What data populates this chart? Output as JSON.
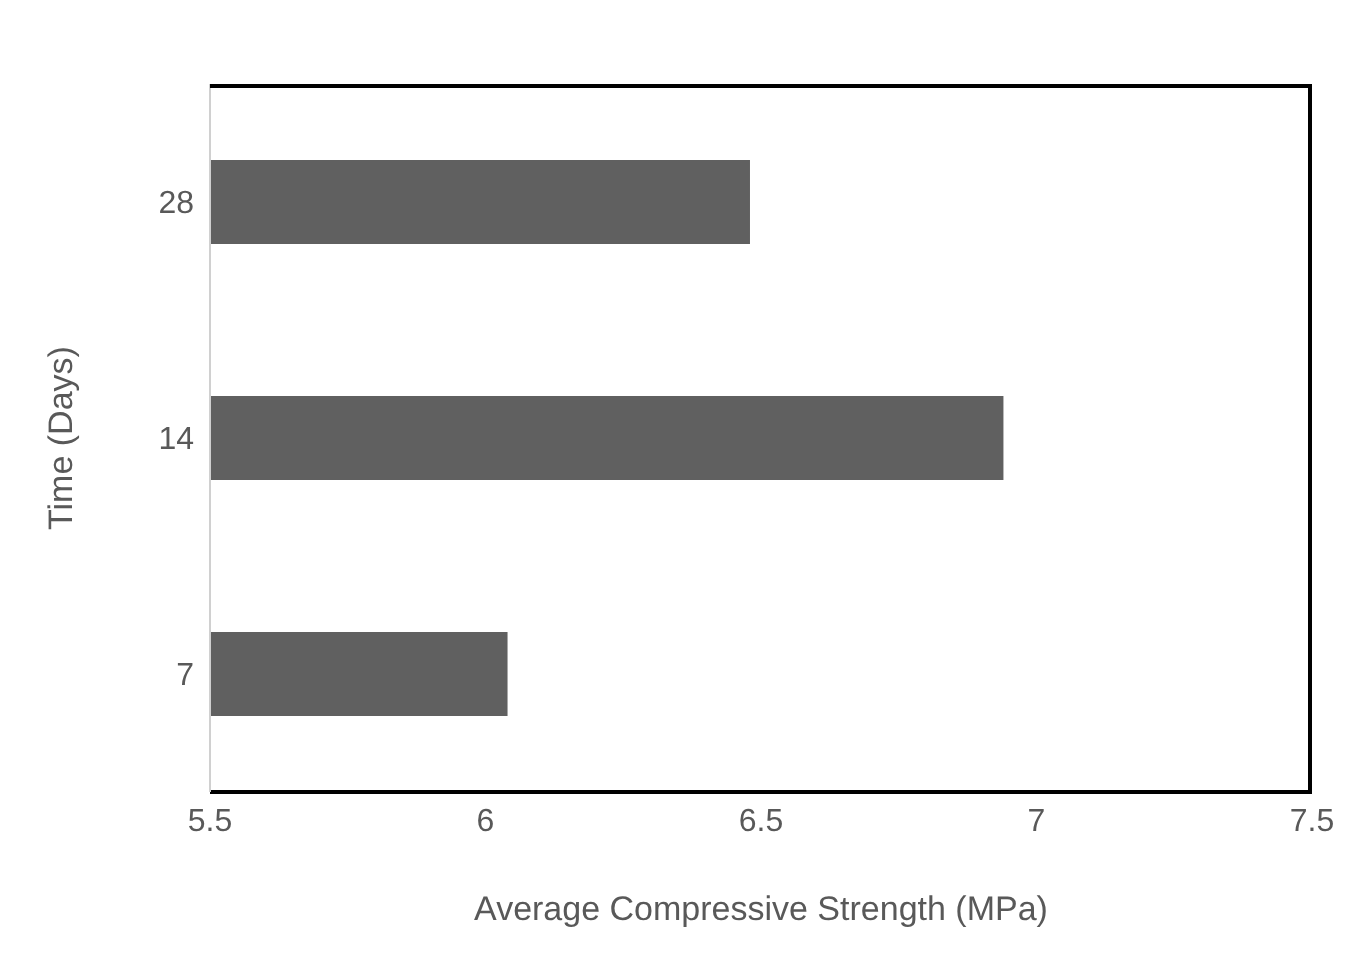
{
  "chart_data": {
    "type": "bar",
    "orientation": "horizontal",
    "xlabel": "Average Compressive Strength (MPa)",
    "ylabel": "Time (Days)",
    "categories": [
      "28",
      "14",
      "7"
    ],
    "values": [
      6.48,
      6.94,
      6.04
    ],
    "color": "#606060",
    "xlim": [
      5.5,
      7.5
    ],
    "xticks": [
      5.5,
      6,
      6.5,
      7,
      7.5
    ],
    "grid": false,
    "legend": false
  }
}
